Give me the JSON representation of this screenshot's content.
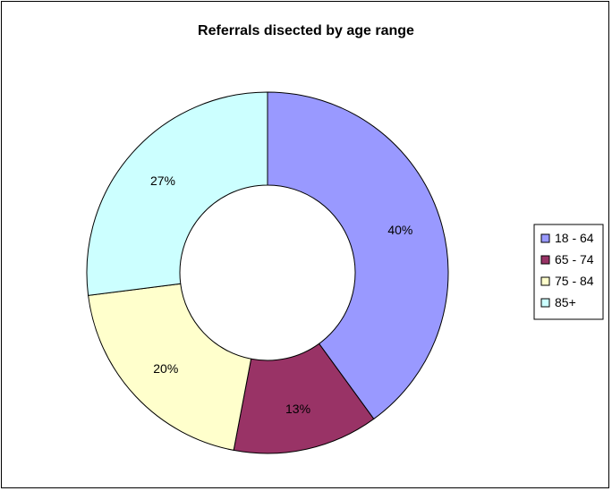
{
  "chart_data": {
    "type": "pie",
    "variant": "doughnut",
    "title": "Referrals disected by age range",
    "categories": [
      "18 - 64",
      "65 - 74",
      "75 - 84",
      "85+"
    ],
    "values": [
      40,
      13,
      20,
      27
    ],
    "labels": [
      "40%",
      "13%",
      "20%",
      "27%"
    ],
    "colors": [
      "#9999ff",
      "#993366",
      "#ffffcc",
      "#ccffff"
    ],
    "legend": "right"
  }
}
